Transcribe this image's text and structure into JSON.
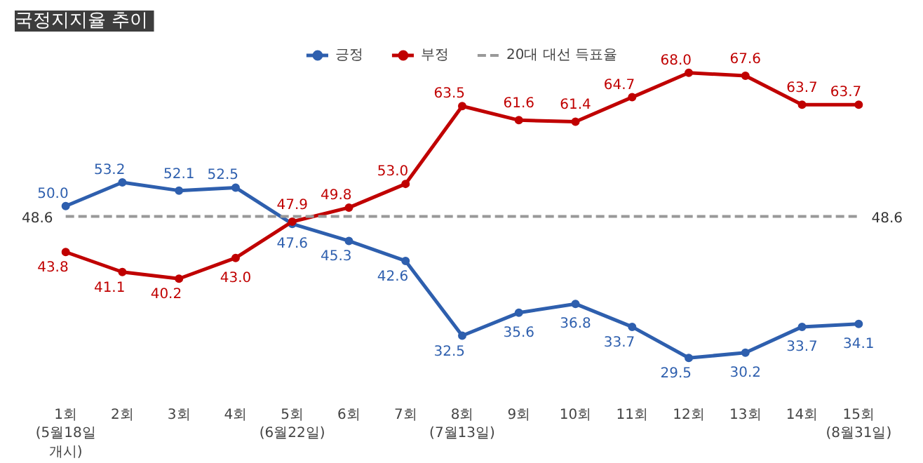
{
  "chart_data": {
    "type": "line",
    "title": "국정지지율  추이",
    "categories": [
      "1회(5월18일 개시)",
      "2회",
      "3회",
      "4회",
      "5회(6월22일)",
      "6회",
      "7회",
      "8회(7월13일)",
      "9회",
      "10회",
      "11회",
      "12회",
      "13회",
      "14회",
      "15회(8월31일)"
    ],
    "series": [
      {
        "name": "긍정",
        "color": "#2e5fae",
        "values": [
          50.0,
          53.2,
          52.1,
          52.5,
          47.6,
          45.3,
          42.6,
          32.5,
          35.6,
          36.8,
          33.7,
          29.5,
          30.2,
          33.7,
          34.1
        ],
        "value_labels": [
          "50.0",
          "53.2",
          "52.1",
          "52.5",
          "47.6",
          "45.3",
          "42.6",
          "32.5",
          "35.6",
          "36.8",
          "33.7",
          "29.5",
          "30.2",
          "33.7",
          "34.1"
        ]
      },
      {
        "name": "부정",
        "color": "#c00000",
        "values": [
          43.8,
          41.1,
          40.2,
          43.0,
          47.9,
          49.8,
          53.0,
          63.5,
          61.6,
          61.4,
          64.7,
          68.0,
          67.6,
          63.7,
          63.7
        ],
        "value_labels": [
          "43.8",
          "41.1",
          "40.2",
          "43.0",
          "47.9",
          "49.8",
          "53.0",
          "63.5",
          "61.6",
          "61.4",
          "64.7",
          "68.0",
          "67.6",
          "63.7",
          "63.7"
        ]
      },
      {
        "name": "20대 대선 득표율",
        "color": "#999999",
        "line_style": "dashed",
        "marker": "none",
        "values": [
          48.6,
          48.6,
          48.6,
          48.6,
          48.6,
          48.6,
          48.6,
          48.6,
          48.6,
          48.6,
          48.6,
          48.6,
          48.6,
          48.6,
          48.6
        ],
        "value_labels": [
          "48.6",
          null,
          null,
          null,
          null,
          null,
          null,
          null,
          null,
          null,
          null,
          null,
          null,
          null,
          "48.6"
        ]
      }
    ],
    "marker": "circle",
    "line_style": "solid",
    "grid": false,
    "legend": "top",
    "tick_labels": "x"
  }
}
